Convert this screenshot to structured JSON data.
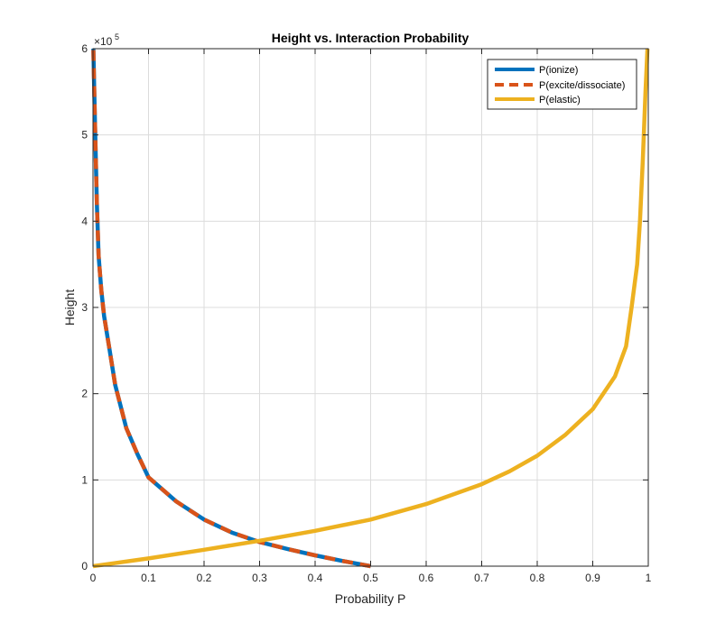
{
  "chart_data": {
    "type": "line",
    "title": "Height vs. Interaction Probability",
    "xlabel": "Probability P",
    "ylabel": "Height",
    "y_exponent_label": "×10",
    "y_exponent_power": "5",
    "xlim": [
      0,
      1
    ],
    "ylim": [
      0,
      600000
    ],
    "x_ticks": [
      0,
      0.1,
      0.2,
      0.3,
      0.4,
      0.5,
      0.6,
      0.7,
      0.8,
      0.9,
      1
    ],
    "x_tick_labels": [
      "0",
      "0.1",
      "0.2",
      "0.3",
      "0.4",
      "0.5",
      "0.6",
      "0.7",
      "0.8",
      "0.9",
      "1"
    ],
    "y_ticks": [
      0,
      100000,
      200000,
      300000,
      400000,
      500000,
      600000
    ],
    "y_tick_labels": [
      "0",
      "1",
      "2",
      "3",
      "4",
      "5",
      "6"
    ],
    "grid": true,
    "legend_position": "top-right",
    "series": [
      {
        "name": "P(ionize)",
        "color": "#0072BD",
        "style": "solid",
        "points": [
          [
            0.5,
            0
          ],
          [
            0.45,
            6000
          ],
          [
            0.4,
            12500
          ],
          [
            0.35,
            20000
          ],
          [
            0.3,
            28000
          ],
          [
            0.25,
            39000
          ],
          [
            0.2,
            54000
          ],
          [
            0.15,
            75000
          ],
          [
            0.1,
            103000
          ],
          [
            0.08,
            130000
          ],
          [
            0.06,
            160000
          ],
          [
            0.04,
            210000
          ],
          [
            0.03,
            250000
          ],
          [
            0.02,
            290000
          ],
          [
            0.015,
            320000
          ],
          [
            0.01,
            360000
          ],
          [
            0.007,
            420000
          ],
          [
            0.004,
            500000
          ],
          [
            0.002,
            560000
          ],
          [
            0.0007,
            600000
          ]
        ]
      },
      {
        "name": "P(excite/dissociate)",
        "color": "#D95319",
        "style": "dashed",
        "points": [
          [
            0.5,
            0
          ],
          [
            0.45,
            6000
          ],
          [
            0.4,
            12500
          ],
          [
            0.35,
            20000
          ],
          [
            0.3,
            28000
          ],
          [
            0.25,
            39000
          ],
          [
            0.2,
            54000
          ],
          [
            0.15,
            75000
          ],
          [
            0.1,
            103000
          ],
          [
            0.08,
            130000
          ],
          [
            0.06,
            160000
          ],
          [
            0.04,
            210000
          ],
          [
            0.03,
            250000
          ],
          [
            0.02,
            290000
          ],
          [
            0.015,
            320000
          ],
          [
            0.01,
            360000
          ],
          [
            0.007,
            420000
          ],
          [
            0.004,
            500000
          ],
          [
            0.002,
            560000
          ],
          [
            0.0007,
            600000
          ]
        ]
      },
      {
        "name": "P(elastic)",
        "color": "#EDB120",
        "style": "solid",
        "points": [
          [
            0,
            0
          ],
          [
            0.1,
            9000
          ],
          [
            0.2,
            19000
          ],
          [
            0.3,
            29500
          ],
          [
            0.4,
            41000
          ],
          [
            0.5,
            54000
          ],
          [
            0.6,
            72000
          ],
          [
            0.7,
            95000
          ],
          [
            0.75,
            110000
          ],
          [
            0.8,
            128000
          ],
          [
            0.85,
            152000
          ],
          [
            0.9,
            182000
          ],
          [
            0.94,
            220000
          ],
          [
            0.96,
            255000
          ],
          [
            0.97,
            300000
          ],
          [
            0.98,
            350000
          ],
          [
            0.985,
            400000
          ],
          [
            0.99,
            470000
          ],
          [
            0.995,
            550000
          ],
          [
            0.9985,
            600000
          ]
        ]
      }
    ]
  }
}
